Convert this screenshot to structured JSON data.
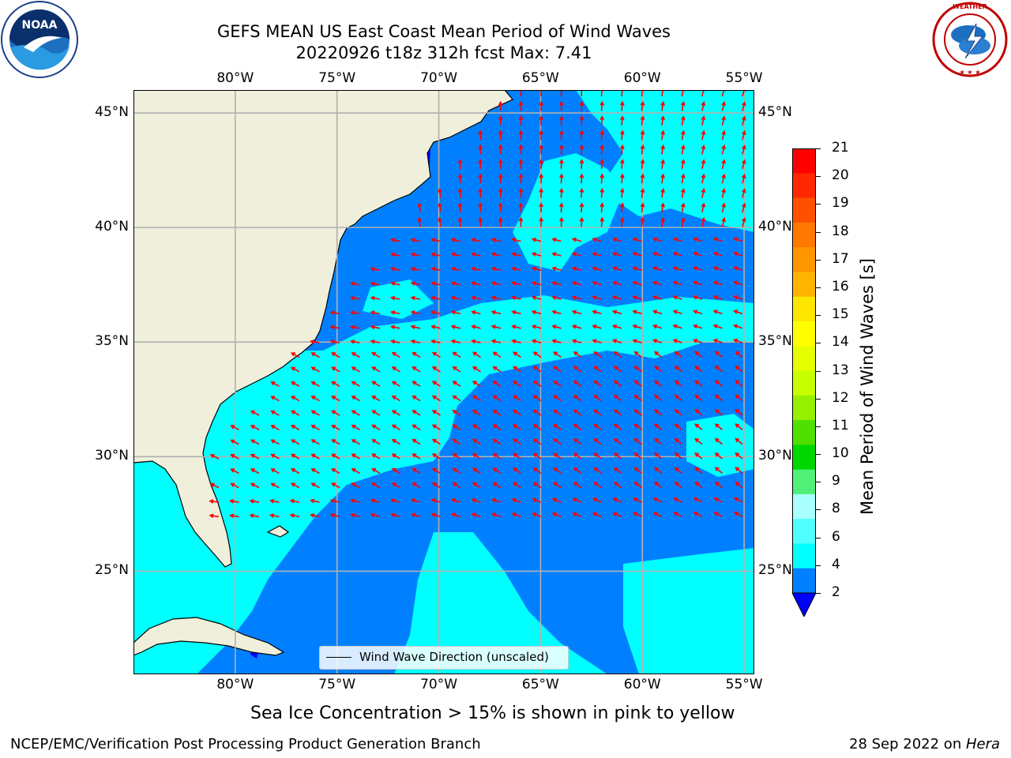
{
  "header": {
    "title_line1": "GEFS MEAN US East Coast Mean Period of Wind Waves",
    "title_line2": "20220926 t18z 312h fcst   Max: 7.41"
  },
  "logos": {
    "left": {
      "text": "NOAA",
      "ring_text": "NATIONAL OCEANIC AND ATMOSPHERIC ADMINISTRATION · U.S. DEPARTMENT OF COMMERCE"
    },
    "right": {
      "ring_text": "NATIONAL WEATHER SERVICE"
    }
  },
  "map": {
    "lon_labels": [
      "80°W",
      "75°W",
      "70°W",
      "65°W",
      "60°W",
      "55°W"
    ],
    "lat_labels": [
      "45°N",
      "40°N",
      "35°N",
      "30°N",
      "25°N"
    ],
    "lon_range": [
      -85,
      -54.5
    ],
    "lat_range": [
      20.5,
      46
    ],
    "grid": true,
    "legend": {
      "label": "Wind Wave Direction (unscaled)",
      "placement": "bottom-center"
    },
    "colors": {
      "land": "#efefdb",
      "ocean_short_period": "#0080ff",
      "ocean_long_period": "#00ffff",
      "arrows": "#ff0000",
      "coast": "#000000",
      "grid": "#b0b0b0"
    }
  },
  "colorbar": {
    "label": "Mean Period of Wind Waves [s]",
    "ticks": [
      "21",
      "20",
      "19",
      "18",
      "17",
      "16",
      "15",
      "14",
      "13",
      "12",
      "11",
      "10",
      "9",
      "8",
      "6",
      "4",
      "2"
    ],
    "colors": [
      "#ff0000",
      "#ff2800",
      "#ff5000",
      "#ff7800",
      "#ff9600",
      "#ffb400",
      "#ffe600",
      "#ffff00",
      "#e6ff00",
      "#c8ff00",
      "#96f000",
      "#50e000",
      "#00d700",
      "#50f078",
      "#aaffff",
      "#50ffff",
      "#00ffff",
      "#0080ff"
    ],
    "extend_color": "#0000ff"
  },
  "note": "Sea Ice Concentration > 15% is shown in pink to yellow",
  "footer": {
    "left": "NCEP/EMC/Verification Post Processing Product Generation Branch",
    "right_prefix": "28 Sep 2022 on ",
    "right_host": "Hera"
  }
}
